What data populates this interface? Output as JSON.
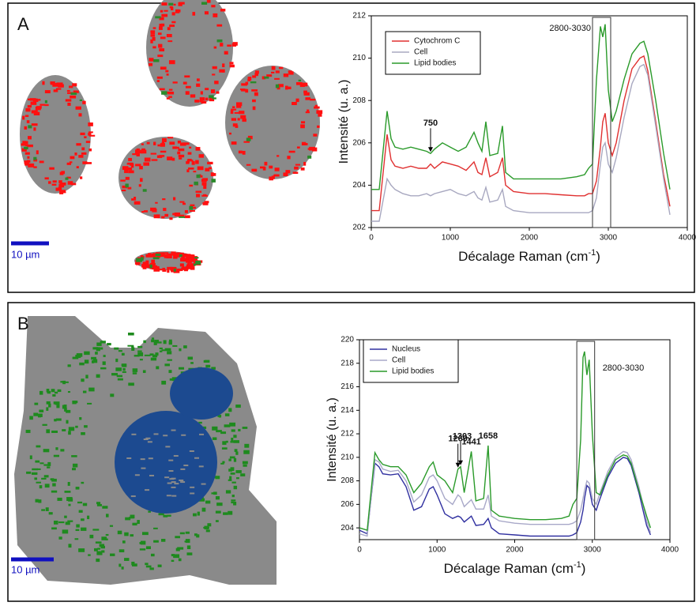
{
  "panels": [
    {
      "label": "A",
      "scale_bar": "10 µm"
    },
    {
      "label": "B",
      "scale_bar": "10 µm"
    }
  ],
  "chart_data": [
    {
      "type": "line",
      "ylabel": "Intensité (u. a.)",
      "xlabel_parts": [
        "Décalage Raman (cm",
        "-1",
        ")"
      ],
      "legend": "upper left",
      "grid": false,
      "xlim": [
        0,
        4000
      ],
      "ylim": [
        202,
        212
      ],
      "xticks": [
        0,
        1000,
        2000,
        3000,
        4000
      ],
      "yticks": [
        202,
        204,
        206,
        208,
        210,
        212
      ],
      "annotations": [
        {
          "x": 750
        },
        {
          "label": "2800-3030",
          "x_range": [
            2800,
            3030
          ]
        }
      ],
      "x": [
        0,
        100,
        200,
        250,
        300,
        400,
        500,
        600,
        700,
        750,
        800,
        900,
        1000,
        1100,
        1200,
        1300,
        1350,
        1400,
        1450,
        1500,
        1600,
        1660,
        1700,
        1800,
        2000,
        2200,
        2400,
        2600,
        2700,
        2750,
        2800,
        2850,
        2900,
        2930,
        2960,
        3000,
        3050,
        3100,
        3200,
        3300,
        3400,
        3450,
        3500,
        3600,
        3700,
        3780
      ],
      "series": [
        {
          "name": "Cytochrom C",
          "color": "#e03030",
          "values": [
            202.8,
            202.8,
            206.4,
            205.2,
            204.9,
            204.8,
            204.9,
            204.8,
            204.8,
            205.0,
            204.8,
            205.1,
            205.0,
            204.9,
            204.7,
            205.1,
            204.6,
            204.5,
            205.3,
            204.4,
            204.6,
            205.3,
            204.0,
            203.7,
            203.6,
            203.6,
            203.55,
            203.5,
            203.5,
            203.6,
            203.6,
            204.2,
            205.8,
            207.0,
            207.4,
            206.0,
            205.4,
            206.0,
            208.0,
            209.5,
            210.0,
            210.1,
            209.4,
            207.0,
            204.5,
            203.0
          ]
        },
        {
          "name": "Cell",
          "color": "#a8a8c0",
          "values": [
            202.3,
            202.3,
            204.3,
            204.0,
            203.8,
            203.6,
            203.5,
            203.5,
            203.6,
            203.5,
            203.6,
            203.7,
            203.8,
            203.6,
            203.5,
            203.7,
            203.4,
            203.3,
            203.9,
            203.2,
            203.3,
            203.8,
            203.0,
            202.8,
            202.7,
            202.7,
            202.7,
            202.7,
            202.7,
            202.7,
            202.8,
            203.4,
            205.0,
            205.8,
            206.0,
            205.0,
            204.6,
            205.3,
            207.2,
            208.8,
            209.6,
            209.7,
            209.2,
            206.8,
            204.3,
            202.6
          ]
        },
        {
          "name": "Lipid bodies",
          "color": "#2a9a2a",
          "values": [
            203.8,
            203.8,
            207.5,
            206.2,
            205.8,
            205.7,
            205.8,
            205.7,
            205.6,
            205.5,
            205.7,
            206.0,
            205.8,
            205.6,
            205.8,
            206.5,
            206.0,
            205.6,
            207.0,
            205.4,
            205.5,
            206.8,
            204.6,
            204.3,
            204.3,
            204.3,
            204.3,
            204.4,
            204.5,
            204.8,
            205.0,
            209.0,
            211.5,
            211.0,
            211.6,
            208.5,
            207.0,
            207.5,
            209.0,
            210.2,
            210.7,
            210.8,
            210.2,
            208.0,
            205.5,
            203.8
          ]
        }
      ]
    },
    {
      "type": "line",
      "ylabel": "Intensité (u. a.)",
      "xlabel_parts": [
        "Décalage Raman (cm",
        "-1",
        ")"
      ],
      "legend": "upper left",
      "grid": false,
      "xlim": [
        0,
        4000
      ],
      "ylim": [
        203,
        220
      ],
      "xticks": [
        0,
        1000,
        2000,
        3000,
        4000
      ],
      "yticks": [
        204,
        206,
        208,
        210,
        212,
        214,
        216,
        218,
        220
      ],
      "annotations": [
        {
          "x": 1269
        },
        {
          "x": 1303
        },
        {
          "x": 1441
        },
        {
          "x": 1658
        },
        {
          "label": "2800-3030",
          "x_range": [
            2800,
            3030
          ]
        }
      ],
      "x": [
        0,
        100,
        200,
        250,
        300,
        400,
        500,
        600,
        700,
        800,
        900,
        950,
        1000,
        1100,
        1200,
        1269,
        1303,
        1350,
        1441,
        1500,
        1600,
        1658,
        1700,
        1800,
        2000,
        2200,
        2400,
        2600,
        2700,
        2750,
        2800,
        2850,
        2880,
        2900,
        2930,
        2960,
        3000,
        3050,
        3100,
        3200,
        3300,
        3400,
        3450,
        3500,
        3600,
        3700,
        3750
      ],
      "series": [
        {
          "name": "Nucleus",
          "color": "#3030a0",
          "values": [
            203.8,
            203.5,
            209.5,
            209.2,
            208.6,
            208.5,
            208.6,
            207.5,
            205.5,
            205.8,
            207.3,
            207.5,
            206.8,
            205.2,
            204.8,
            205.0,
            204.9,
            204.5,
            205.0,
            204.2,
            204.3,
            204.8,
            204.0,
            203.5,
            203.4,
            203.3,
            203.3,
            203.3,
            203.3,
            203.4,
            203.6,
            204.5,
            205.5,
            206.5,
            207.6,
            207.4,
            206.0,
            205.5,
            206.5,
            208.3,
            209.5,
            210.0,
            209.9,
            209.3,
            207.0,
            204.2,
            203.4
          ]
        },
        {
          "name": "Cell",
          "color": "#a8a8c8",
          "values": [
            203.5,
            203.3,
            209.8,
            209.6,
            209.0,
            208.8,
            208.9,
            208.0,
            206.2,
            206.8,
            208.3,
            208.5,
            208.0,
            206.5,
            206.0,
            206.8,
            206.6,
            205.8,
            206.4,
            205.6,
            205.6,
            206.8,
            205.0,
            204.6,
            204.4,
            204.3,
            204.3,
            204.3,
            204.3,
            204.4,
            204.6,
            205.5,
            206.5,
            207.2,
            208.0,
            207.8,
            206.5,
            206.0,
            207.0,
            208.8,
            210.0,
            210.5,
            210.4,
            209.8,
            207.5,
            204.6,
            203.6
          ]
        },
        {
          "name": "Lipid bodies",
          "color": "#2a9a2a",
          "values": [
            204.0,
            203.8,
            210.4,
            209.8,
            209.4,
            209.2,
            209.2,
            208.5,
            207.0,
            207.8,
            209.2,
            209.6,
            208.5,
            208.0,
            207.0,
            209.0,
            209.2,
            207.0,
            210.5,
            206.3,
            206.5,
            211.0,
            205.5,
            205.0,
            204.8,
            204.7,
            204.7,
            204.8,
            205.0,
            206.0,
            206.5,
            211.5,
            218.5,
            219.0,
            217.0,
            218.3,
            212.0,
            207.0,
            206.8,
            208.5,
            209.8,
            210.2,
            210.1,
            209.5,
            207.2,
            205.0,
            204.0
          ]
        }
      ]
    }
  ]
}
